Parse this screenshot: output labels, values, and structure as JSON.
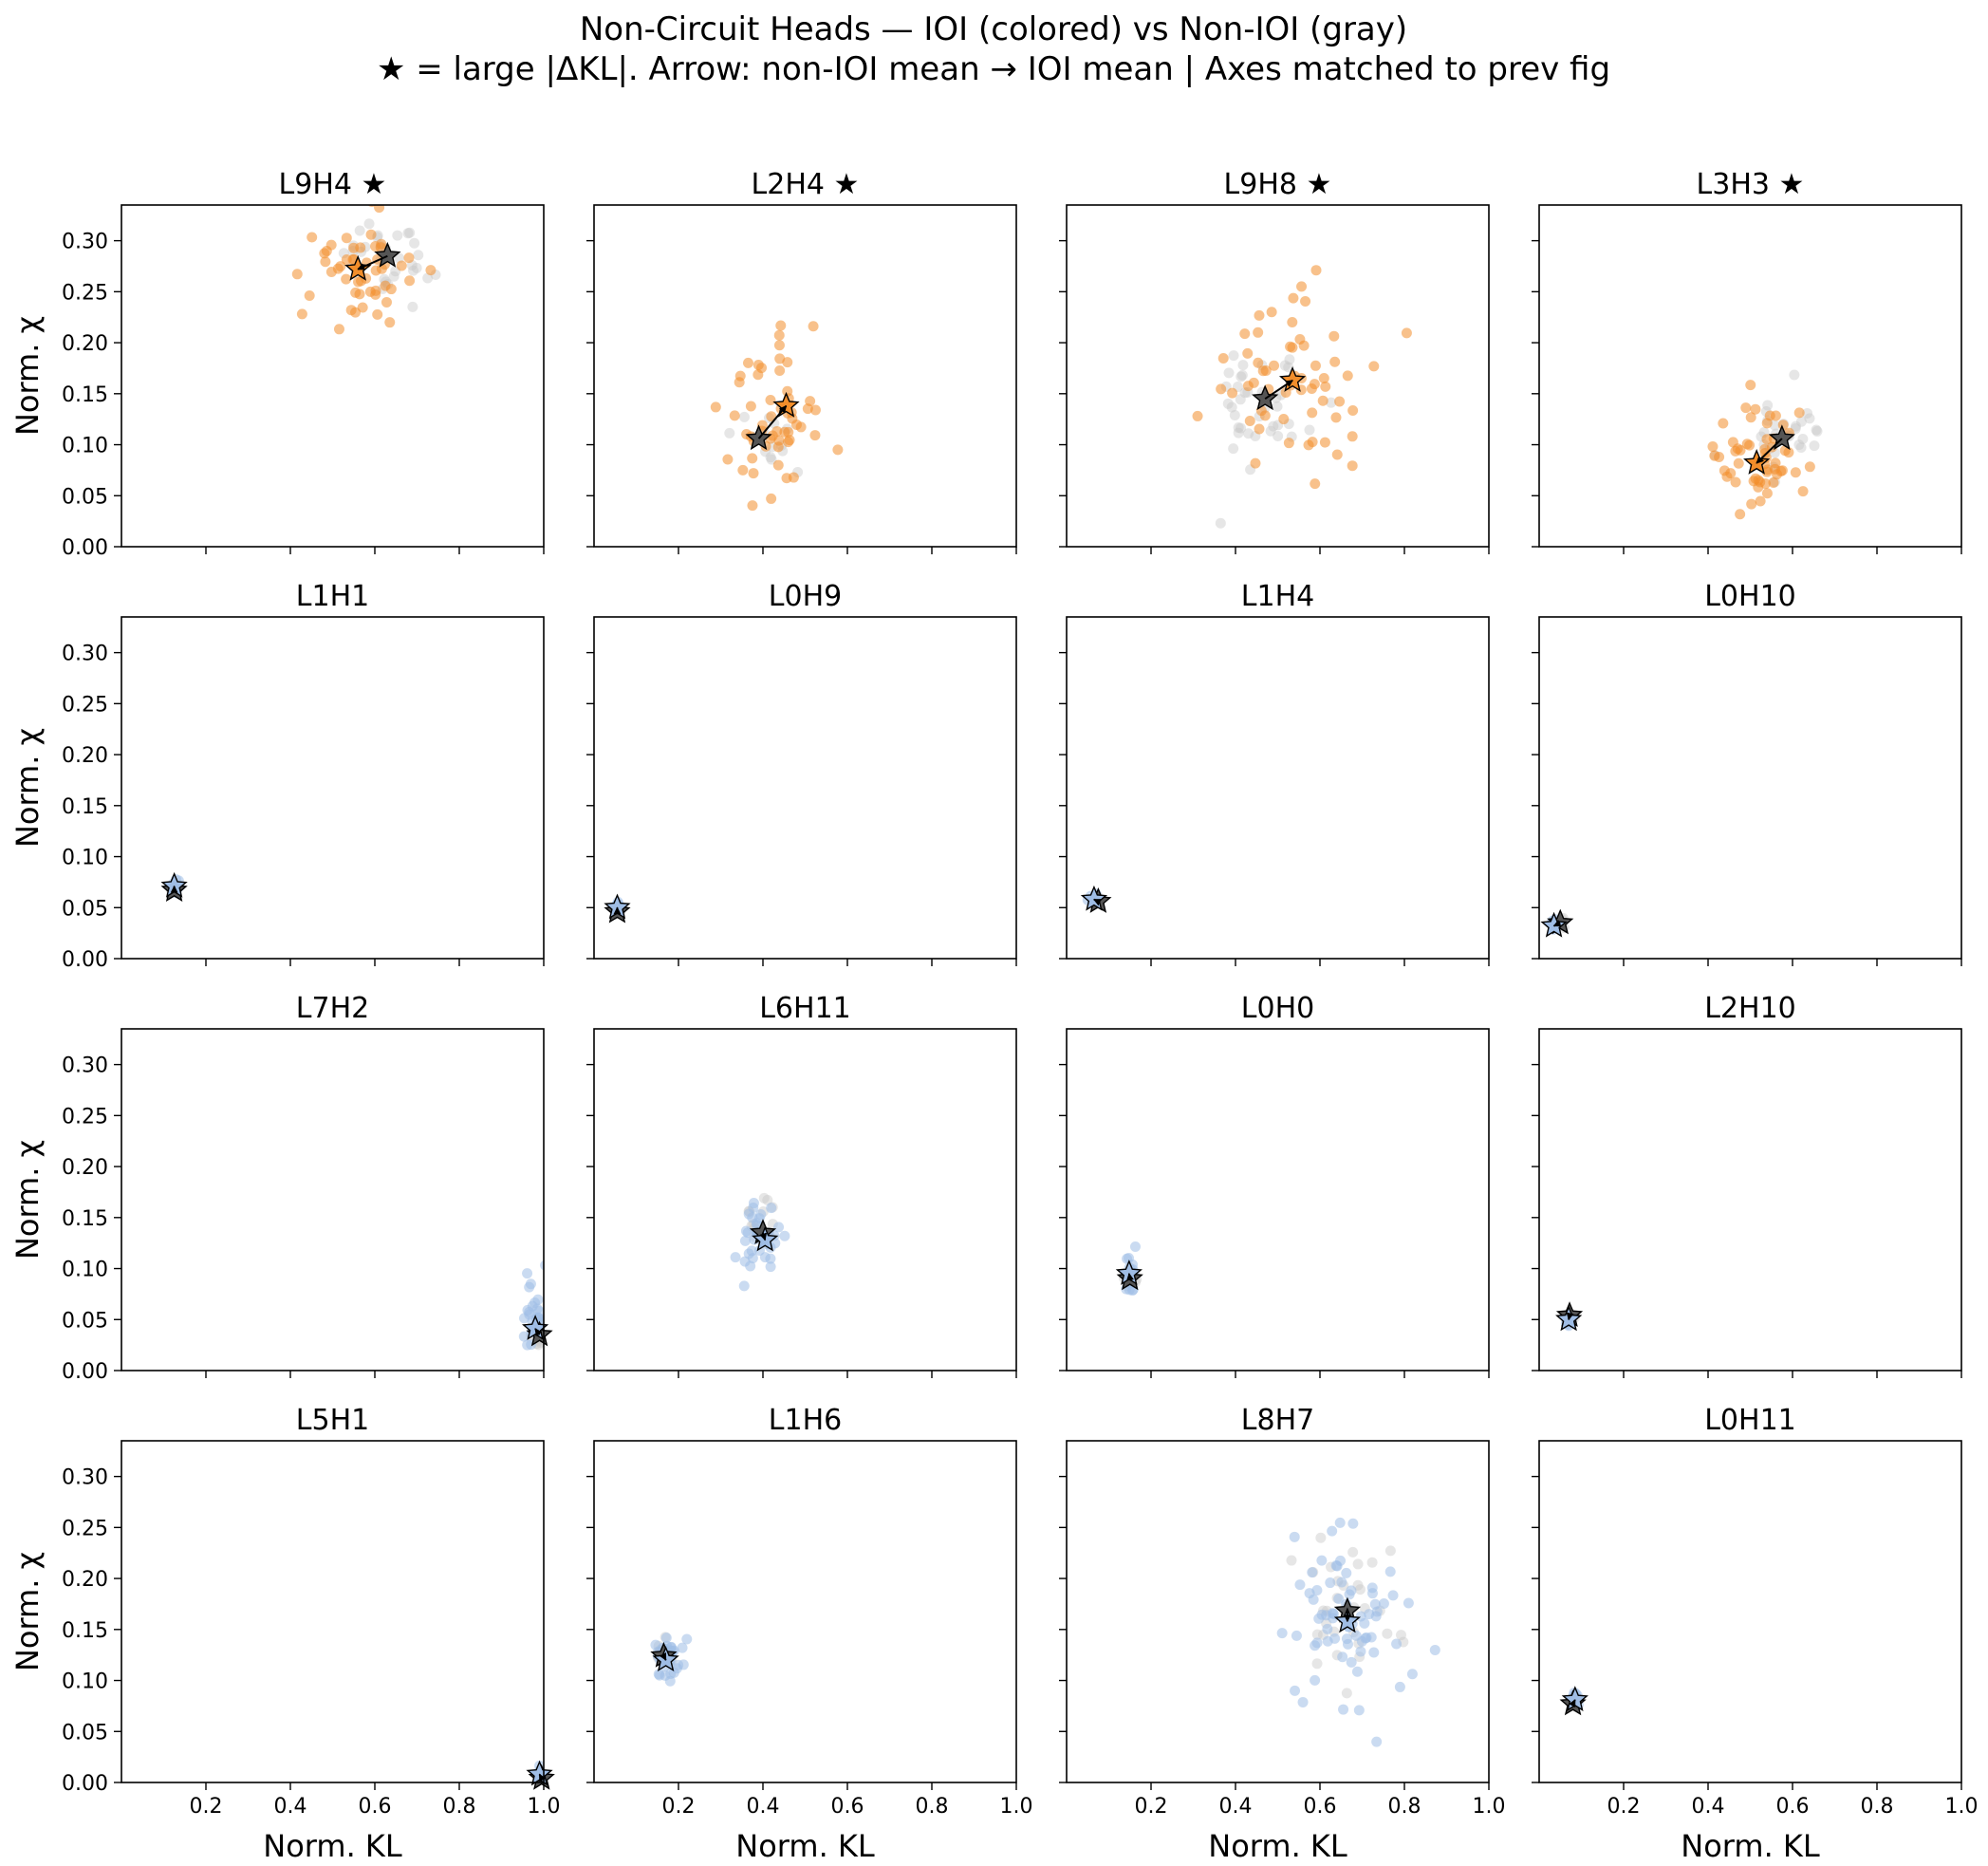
{
  "title_line1": "Non-Circuit Heads — IOI (colored) vs Non-IOI (gray)",
  "title_line2": "★ = large |ΔKL|.  Arrow: non-IOI mean → IOI mean  |  Axes matched to prev fig",
  "colors": {
    "large_dkl": "#f28e2b",
    "small_dkl": "#9fbde5",
    "non_ioi": "#c7c7c7",
    "non_ioi_mean_star": "#555555"
  },
  "chart_data": {
    "type": "scatter",
    "layout": "4x4 grid of small multiples, shared axes",
    "xlabel": "Norm. KL",
    "ylabel": "Norm. χ",
    "xlim": [
      0.0,
      1.0
    ],
    "ylim": [
      0.0,
      0.335
    ],
    "xticks": [
      0.2,
      0.4,
      0.6,
      0.8,
      1.0
    ],
    "xtick_labels": [
      "0.2",
      "0.4",
      "0.6",
      "0.8",
      "1.0"
    ],
    "yticks": [
      0.0,
      0.05,
      0.1,
      0.15,
      0.2,
      0.25,
      0.3
    ],
    "ytick_labels": [
      "0.00",
      "0.05",
      "0.10",
      "0.15",
      "0.20",
      "0.25",
      "0.30"
    ],
    "panels": [
      {
        "title": "L9H4 ★",
        "large": true,
        "non_ioi_mean": [
          0.63,
          0.285
        ],
        "ioi_mean": [
          0.56,
          0.272
        ],
        "ioi_cloud": {
          "cx": 0.55,
          "cy": 0.27,
          "sx": 0.07,
          "sy": 0.03,
          "n": 50
        },
        "non_ioi_cloud": {
          "cx": 0.64,
          "cy": 0.285,
          "sx": 0.05,
          "sy": 0.02,
          "n": 30
        }
      },
      {
        "title": "L2H4 ★",
        "large": true,
        "non_ioi_mean": [
          0.39,
          0.106
        ],
        "ioi_mean": [
          0.455,
          0.138
        ],
        "ioi_cloud": {
          "cx": 0.42,
          "cy": 0.12,
          "sx": 0.06,
          "sy": 0.04,
          "n": 55
        },
        "non_ioi_cloud": {
          "cx": 0.39,
          "cy": 0.105,
          "sx": 0.04,
          "sy": 0.02,
          "n": 15
        }
      },
      {
        "title": "L9H8 ★",
        "large": true,
        "non_ioi_mean": [
          0.47,
          0.145
        ],
        "ioi_mean": [
          0.535,
          0.163
        ],
        "ioi_cloud": {
          "cx": 0.53,
          "cy": 0.16,
          "sx": 0.09,
          "sy": 0.045,
          "n": 60
        },
        "non_ioi_cloud": {
          "cx": 0.47,
          "cy": 0.145,
          "sx": 0.07,
          "sy": 0.035,
          "n": 40
        }
      },
      {
        "title": "L3H3 ★",
        "large": true,
        "non_ioi_mean": [
          0.575,
          0.106
        ],
        "ioi_mean": [
          0.515,
          0.082
        ],
        "ioi_cloud": {
          "cx": 0.52,
          "cy": 0.085,
          "sx": 0.05,
          "sy": 0.025,
          "n": 55
        },
        "non_ioi_cloud": {
          "cx": 0.58,
          "cy": 0.11,
          "sx": 0.06,
          "sy": 0.02,
          "n": 30
        }
      },
      {
        "title": "L1H1",
        "large": false,
        "non_ioi_mean": [
          0.125,
          0.067
        ],
        "ioi_mean": [
          0.125,
          0.071
        ],
        "ioi_cloud": {
          "cx": 0.125,
          "cy": 0.07,
          "sx": 0.005,
          "sy": 0.003,
          "n": 10
        },
        "non_ioi_cloud": {
          "cx": 0.125,
          "cy": 0.067,
          "sx": 0.005,
          "sy": 0.003,
          "n": 8
        }
      },
      {
        "title": "L0H9",
        "large": false,
        "non_ioi_mean": [
          0.055,
          0.046
        ],
        "ioi_mean": [
          0.055,
          0.05
        ],
        "ioi_cloud": {
          "cx": 0.055,
          "cy": 0.05,
          "sx": 0.005,
          "sy": 0.003,
          "n": 10
        },
        "non_ioi_cloud": {
          "cx": 0.055,
          "cy": 0.047,
          "sx": 0.005,
          "sy": 0.003,
          "n": 8
        }
      },
      {
        "title": "L1H4",
        "large": false,
        "non_ioi_mean": [
          0.075,
          0.056
        ],
        "ioi_mean": [
          0.065,
          0.058
        ],
        "ioi_cloud": {
          "cx": 0.065,
          "cy": 0.058,
          "sx": 0.006,
          "sy": 0.003,
          "n": 10
        },
        "non_ioi_cloud": {
          "cx": 0.075,
          "cy": 0.056,
          "sx": 0.006,
          "sy": 0.003,
          "n": 8
        }
      },
      {
        "title": "L0H10",
        "large": false,
        "non_ioi_mean": [
          0.05,
          0.035
        ],
        "ioi_mean": [
          0.035,
          0.032
        ],
        "ioi_cloud": {
          "cx": 0.035,
          "cy": 0.032,
          "sx": 0.005,
          "sy": 0.003,
          "n": 10
        },
        "non_ioi_cloud": {
          "cx": 0.05,
          "cy": 0.035,
          "sx": 0.005,
          "sy": 0.003,
          "n": 8
        }
      },
      {
        "title": "L7H2",
        "large": false,
        "non_ioi_mean": [
          0.99,
          0.035
        ],
        "ioi_mean": [
          0.98,
          0.041
        ],
        "ioi_cloud": {
          "cx": 0.975,
          "cy": 0.055,
          "sx": 0.012,
          "sy": 0.02,
          "n": 25
        },
        "non_ioi_cloud": {
          "cx": 0.99,
          "cy": 0.035,
          "sx": 0.008,
          "sy": 0.012,
          "n": 10
        }
      },
      {
        "title": "L6H11",
        "large": false,
        "non_ioi_mean": [
          0.4,
          0.135
        ],
        "ioi_mean": [
          0.405,
          0.128
        ],
        "ioi_cloud": {
          "cx": 0.395,
          "cy": 0.125,
          "sx": 0.025,
          "sy": 0.018,
          "n": 35
        },
        "non_ioi_cloud": {
          "cx": 0.4,
          "cy": 0.145,
          "sx": 0.02,
          "sy": 0.015,
          "n": 20
        }
      },
      {
        "title": "L0H0",
        "large": false,
        "non_ioi_mean": [
          0.15,
          0.09
        ],
        "ioi_mean": [
          0.148,
          0.095
        ],
        "ioi_cloud": {
          "cx": 0.147,
          "cy": 0.094,
          "sx": 0.008,
          "sy": 0.009,
          "n": 20
        },
        "non_ioi_cloud": {
          "cx": 0.15,
          "cy": 0.09,
          "sx": 0.006,
          "sy": 0.006,
          "n": 10
        }
      },
      {
        "title": "L2H10",
        "large": false,
        "non_ioi_mean": [
          0.072,
          0.054
        ],
        "ioi_mean": [
          0.07,
          0.05
        ],
        "ioi_cloud": {
          "cx": 0.07,
          "cy": 0.05,
          "sx": 0.004,
          "sy": 0.003,
          "n": 10
        },
        "non_ioi_cloud": {
          "cx": 0.072,
          "cy": 0.054,
          "sx": 0.004,
          "sy": 0.003,
          "n": 8
        }
      },
      {
        "title": "L5H1",
        "large": false,
        "non_ioi_mean": [
          0.995,
          0.004
        ],
        "ioi_mean": [
          0.99,
          0.008
        ],
        "ioi_cloud": {
          "cx": 0.99,
          "cy": 0.009,
          "sx": 0.004,
          "sy": 0.004,
          "n": 10
        },
        "non_ioi_cloud": {
          "cx": 0.995,
          "cy": 0.004,
          "sx": 0.003,
          "sy": 0.003,
          "n": 6
        }
      },
      {
        "title": "L1H6",
        "large": false,
        "non_ioi_mean": [
          0.165,
          0.124
        ],
        "ioi_mean": [
          0.17,
          0.12
        ],
        "ioi_cloud": {
          "cx": 0.175,
          "cy": 0.125,
          "sx": 0.015,
          "sy": 0.012,
          "n": 35
        },
        "non_ioi_cloud": {
          "cx": 0.165,
          "cy": 0.124,
          "sx": 0.01,
          "sy": 0.008,
          "n": 12
        }
      },
      {
        "title": "L8H7",
        "large": false,
        "non_ioi_mean": [
          0.665,
          0.168
        ],
        "ioi_mean": [
          0.665,
          0.158
        ],
        "ioi_cloud": {
          "cx": 0.67,
          "cy": 0.16,
          "sx": 0.08,
          "sy": 0.04,
          "n": 70
        },
        "non_ioi_cloud": {
          "cx": 0.66,
          "cy": 0.168,
          "sx": 0.06,
          "sy": 0.035,
          "n": 35
        }
      },
      {
        "title": "L0H11",
        "large": false,
        "non_ioi_mean": [
          0.08,
          0.077
        ],
        "ioi_mean": [
          0.085,
          0.081
        ],
        "ioi_cloud": {
          "cx": 0.085,
          "cy": 0.081,
          "sx": 0.004,
          "sy": 0.004,
          "n": 10
        },
        "non_ioi_cloud": {
          "cx": 0.08,
          "cy": 0.077,
          "sx": 0.004,
          "sy": 0.004,
          "n": 8
        }
      }
    ]
  }
}
